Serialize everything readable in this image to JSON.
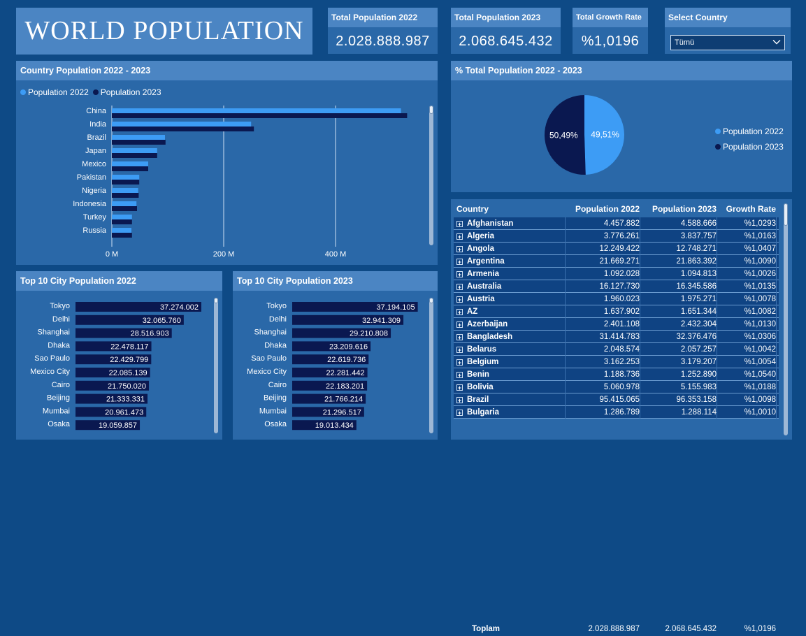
{
  "header": {
    "title": "WORLD POPULATION"
  },
  "kpis": [
    {
      "label": "Total Population 2022",
      "value": "2.028.888.987"
    },
    {
      "label": "Total Population 2023",
      "value": "2.068.645.432"
    },
    {
      "label": "Total Growth Rate",
      "value": "%1,0196"
    }
  ],
  "slicer": {
    "label": "Select Country",
    "selected": "Tümü"
  },
  "colors": {
    "pop2022": "#3d9cf5",
    "pop2023": "#0a1850",
    "city_bar": "#0a1850",
    "panel": "#2a68a8",
    "header": "#4b85c3"
  },
  "country_chart": {
    "title": "Country Population 2022 - 2023",
    "chart_data": {
      "type": "bar",
      "orientation": "horizontal",
      "categories": [
        "China",
        "India",
        "Brazil",
        "Japan",
        "Mexico",
        "Pakistan",
        "Nigeria",
        "Indonesia",
        "Turkey",
        "Russia"
      ],
      "series": [
        {
          "name": "Population 2022",
          "values": [
            517,
            249,
            95,
            81,
            65,
            49,
            47,
            44,
            36,
            35
          ]
        },
        {
          "name": "Population 2023",
          "values": [
            528,
            254,
            96,
            81,
            65,
            49,
            48,
            45,
            36,
            36
          ]
        }
      ],
      "x_ticks": [
        "0 M",
        "200 M",
        "400 M"
      ],
      "xlim": [
        0,
        560
      ],
      "legend": "top-left",
      "grid": true
    }
  },
  "pie_chart": {
    "title": "% Total Population 2022 - 2023",
    "chart_data": {
      "type": "pie",
      "labels": [
        "Population 2022",
        "Population 2023"
      ],
      "values": [
        49.51,
        50.49
      ],
      "data_labels": [
        "49,51%",
        "50,49%"
      ],
      "legend": "right"
    }
  },
  "city_2022": {
    "title": "Top 10 City Population 2022",
    "chart_data": {
      "type": "bar",
      "orientation": "horizontal",
      "categories": [
        "Tokyo",
        "Delhi",
        "Shanghai",
        "Dhaka",
        "Sao Paulo",
        "Mexico City",
        "Cairo",
        "Beijing",
        "Mumbai",
        "Osaka"
      ],
      "values": [
        37274002,
        32065760,
        28516903,
        22478117,
        22429799,
        22085139,
        21750020,
        21333331,
        20961473,
        19059857
      ],
      "labels": [
        "37.274.002",
        "32.065.760",
        "28.516.903",
        "22.478.117",
        "22.429.799",
        "22.085.139",
        "21.750.020",
        "21.333.331",
        "20.961.473",
        "19.059.857"
      ]
    }
  },
  "city_2023": {
    "title": "Top 10 City Population 2023",
    "chart_data": {
      "type": "bar",
      "orientation": "horizontal",
      "categories": [
        "Tokyo",
        "Delhi",
        "Shanghai",
        "Dhaka",
        "Sao Paulo",
        "Mexico City",
        "Cairo",
        "Beijing",
        "Mumbai",
        "Osaka"
      ],
      "values": [
        37194105,
        32941309,
        29210808,
        23209616,
        22619736,
        22281442,
        22183201,
        21766214,
        21296517,
        19013434
      ],
      "labels": [
        "37.194.105",
        "32.941.309",
        "29.210.808",
        "23.209.616",
        "22.619.736",
        "22.281.442",
        "22.183.201",
        "21.766.214",
        "21.296.517",
        "19.013.434"
      ]
    }
  },
  "table": {
    "columns": [
      "Country",
      "Population 2022",
      "Population 2023",
      "Growth Rate"
    ],
    "rows": [
      [
        "Afghanistan",
        "4.457.882",
        "4.588.666",
        "%1,0293"
      ],
      [
        "Algeria",
        "3.776.261",
        "3.837.757",
        "%1,0163"
      ],
      [
        "Angola",
        "12.249.422",
        "12.748.271",
        "%1,0407"
      ],
      [
        "Argentina",
        "21.669.271",
        "21.863.392",
        "%1,0090"
      ],
      [
        "Armenia",
        "1.092.028",
        "1.094.813",
        "%1,0026"
      ],
      [
        "Australia",
        "16.127.730",
        "16.345.586",
        "%1,0135"
      ],
      [
        "Austria",
        "1.960.023",
        "1.975.271",
        "%1,0078"
      ],
      [
        "AZ",
        "1.637.902",
        "1.651.344",
        "%1,0082"
      ],
      [
        "Azerbaijan",
        "2.401.108",
        "2.432.304",
        "%1,0130"
      ],
      [
        "Bangladesh",
        "31.414.783",
        "32.376.476",
        "%1,0306"
      ],
      [
        "Belarus",
        "2.048.574",
        "2.057.257",
        "%1,0042"
      ],
      [
        "Belgium",
        "3.162.253",
        "3.179.207",
        "%1,0054"
      ],
      [
        "Benin",
        "1.188.736",
        "1.252.890",
        "%1,0540"
      ],
      [
        "Bolivia",
        "5.060.978",
        "5.155.983",
        "%1,0188"
      ],
      [
        "Brazil",
        "95.415.065",
        "96.353.158",
        "%1,0098"
      ],
      [
        "Bulgaria",
        "1.286.789",
        "1.288.114",
        "%1,0010"
      ]
    ],
    "total": [
      "Toplam",
      "2.028.888.987",
      "2.068.645.432",
      "%1,0196"
    ]
  }
}
